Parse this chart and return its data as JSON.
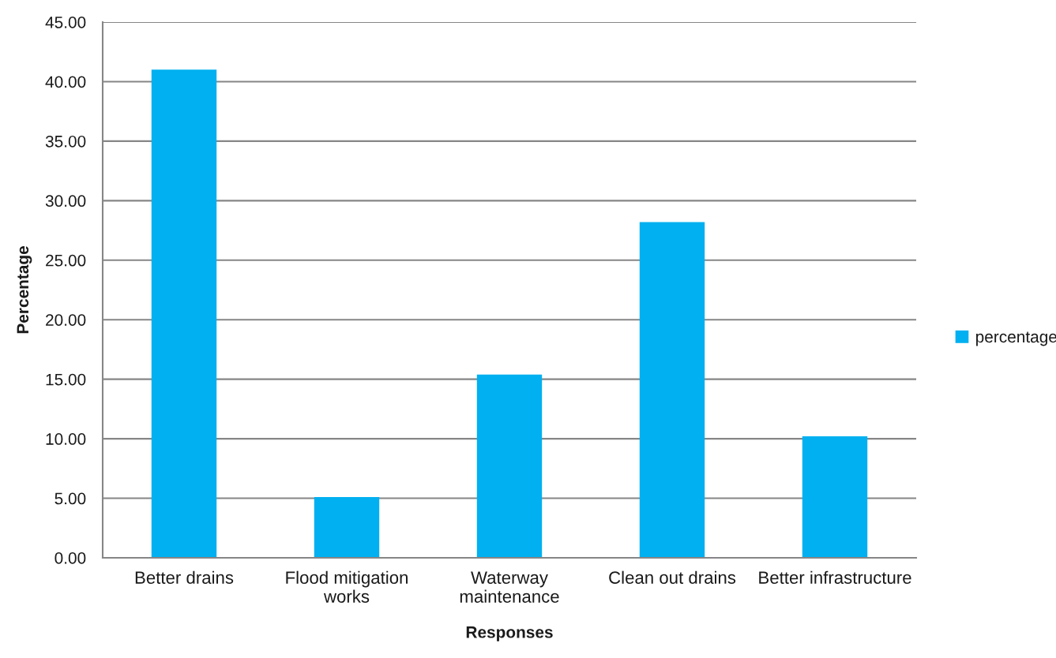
{
  "chart_data": {
    "type": "bar",
    "xlabel": "Responses",
    "ylabel": "Percentage",
    "categories": [
      "Better drains",
      "Flood mitigation works",
      "Waterway maintenance",
      "Clean out drains",
      "Better infrastructure"
    ],
    "series": [
      {
        "name": "percentage",
        "color": "#00b0f0",
        "values": [
          41.0,
          5.1,
          15.4,
          28.2,
          10.2
        ]
      }
    ],
    "ylim": [
      0,
      45
    ],
    "yticks": [
      {
        "value": 0,
        "label": "0.00"
      },
      {
        "value": 5,
        "label": "5.00"
      },
      {
        "value": 10,
        "label": "10.00"
      },
      {
        "value": 15,
        "label": "15.00"
      },
      {
        "value": 20,
        "label": "20.00"
      },
      {
        "value": 25,
        "label": "25.00"
      },
      {
        "value": 30,
        "label": "30.00"
      },
      {
        "value": 35,
        "label": "35.00"
      },
      {
        "value": 40,
        "label": "40.00"
      },
      {
        "value": 45,
        "label": "45.00"
      }
    ],
    "grid": "y",
    "legend": "right"
  }
}
